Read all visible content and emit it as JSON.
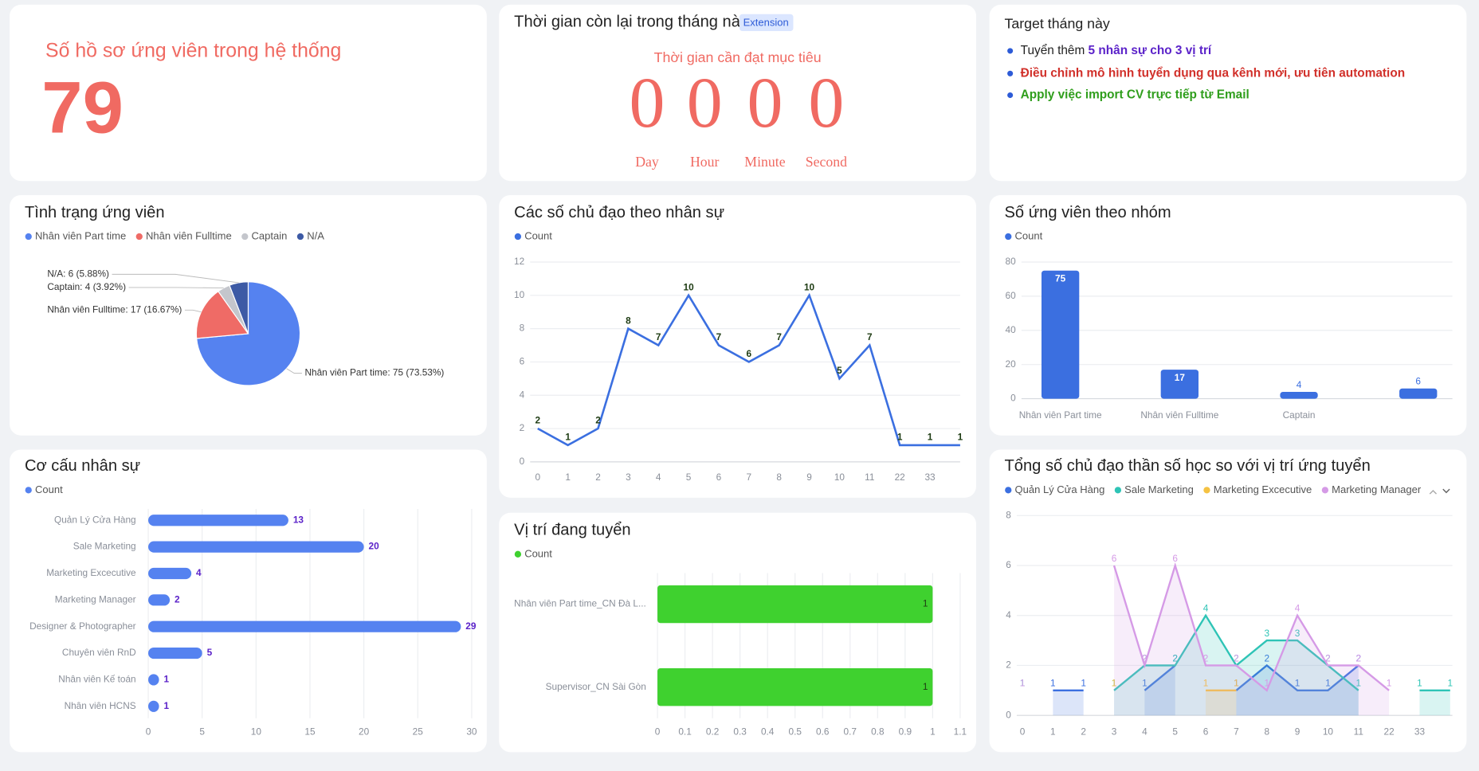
{
  "cards": {
    "candidates": {
      "title": "Số hồ sơ ứng viên trong hệ thống",
      "value": 79
    },
    "countdown": {
      "title": "Thời gian còn lại trong tháng này",
      "badge": "Extension",
      "subtitle": "Thời gian cần đạt mục tiêu",
      "units": [
        {
          "label": "Day",
          "value": 0
        },
        {
          "label": "Hour",
          "value": 0
        },
        {
          "label": "Minute",
          "value": 0
        },
        {
          "label": "Second",
          "value": 0
        }
      ]
    },
    "target": {
      "title": "Target tháng này",
      "items": [
        {
          "text": "Tuyển thêm ",
          "highlight": "5 nhân sự cho 3 vị trí",
          "color": "#5b22c9"
        },
        {
          "highlight": "Điều chỉnh mô hình tuyển dụng qua kênh mới, ưu tiên automation",
          "color": "#d1302a"
        },
        {
          "highlight": "Apply việc import CV trực tiếp từ Email",
          "color": "#2f9e1c"
        }
      ]
    }
  },
  "chart_data": [
    {
      "type": "pie",
      "title": "Tình trạng ứng viên",
      "categories": [
        "Nhân viên Part time",
        "Nhân viên Fulltime",
        "Captain",
        "N/A"
      ],
      "values": [
        75,
        17,
        4,
        6
      ],
      "value_labels": [
        "Nhân viên Part time: 75 (73.53%)",
        "Nhân viên Fulltime: 17 (16.67%)",
        "Captain: 4 (3.92%)",
        "N/A: 6 (5.88%)"
      ],
      "colors": [
        "#5582f0",
        "#ef6b66",
        "#c4c6cc",
        "#3d5aa5"
      ],
      "legend": "top-left"
    },
    {
      "type": "line",
      "title": "Các số chủ đạo theo nhân sự",
      "categories": [
        "0",
        "1",
        "2",
        "3",
        "4",
        "5",
        "6",
        "7",
        "8",
        "9",
        "10",
        "11",
        "22",
        "33",
        null
      ],
      "series": [
        {
          "name": "Count",
          "color": "#3b6fe0",
          "values": [
            2,
            1,
            2,
            8,
            7,
            10,
            7,
            6,
            7,
            10,
            5,
            7,
            1,
            1,
            1
          ]
        }
      ],
      "ylim": [
        0,
        12
      ],
      "yticks": [
        0,
        2,
        4,
        6,
        8,
        10,
        12
      ],
      "grid": true,
      "legend": "top-left"
    },
    {
      "type": "bar",
      "title": "Số ứng viên theo nhóm",
      "categories": [
        "Nhân viên Part time",
        "Nhân viên Fulltime",
        "Captain",
        null
      ],
      "series": [
        {
          "name": "Count",
          "color": "#3b6fe0",
          "values": [
            75,
            17,
            4,
            6
          ]
        }
      ],
      "ylim": [
        0,
        80
      ],
      "yticks": [
        0,
        20,
        40,
        60,
        80
      ],
      "grid": true,
      "legend": "top-left"
    },
    {
      "type": "hbar",
      "title": "Cơ cấu nhân sự",
      "categories": [
        "Quản Lý Cửa Hàng",
        "Sale Marketing",
        "Marketing Excecutive",
        "Marketing Manager",
        "Designer & Photographer",
        "Chuyên viên RnD",
        "Nhân viên Kế toán",
        "Nhân viên HCNS"
      ],
      "series": [
        {
          "name": "Count",
          "color": "#5582f0",
          "values": [
            13,
            20,
            4,
            2,
            29,
            5,
            1,
            1
          ]
        }
      ],
      "xlim": [
        0,
        30
      ],
      "xticks": [
        0,
        5,
        10,
        15,
        20,
        25,
        30
      ],
      "grid": true,
      "legend": "top-left"
    },
    {
      "type": "hbar",
      "title": "Vị trí đang tuyển",
      "categories": [
        "Nhân viên Part time_CN Đà L...",
        "Supervisor_CN Sài Gòn"
      ],
      "series": [
        {
          "name": "Count",
          "color": "#3fd12f",
          "values": [
            1,
            1
          ]
        }
      ],
      "xlim": [
        0,
        1.1
      ],
      "xticks": [
        0,
        0.1,
        0.2,
        0.3,
        0.4,
        0.5,
        0.6,
        0.7,
        0.8,
        0.9,
        1,
        1.1
      ],
      "grid": true,
      "legend": "top-left"
    },
    {
      "type": "area",
      "title": "Tổng số chủ đạo thần số học so với vị trí ứng tuyển",
      "categories": [
        "0",
        "1",
        "2",
        "3",
        "4",
        "5",
        "6",
        "7",
        "8",
        "9",
        "10",
        "11",
        "22",
        "33",
        null
      ],
      "series": [
        {
          "name": "Quản Lý Cửa Hàng",
          "color": "#3b6fe0",
          "values": [
            null,
            1,
            1,
            null,
            1,
            2,
            null,
            1,
            2,
            1,
            1,
            2,
            null,
            null,
            null
          ]
        },
        {
          "name": "Sale Marketing",
          "color": "#2ec4b6",
          "values": [
            1,
            null,
            null,
            1,
            2,
            2,
            4,
            2,
            3,
            3,
            2,
            1,
            null,
            1,
            1
          ]
        },
        {
          "name": "Marketing Excecutive",
          "color": "#f5c242",
          "values": [
            null,
            null,
            null,
            1,
            null,
            null,
            1,
            1,
            null,
            null,
            null,
            null,
            null,
            null,
            null
          ]
        },
        {
          "name": "Marketing Manager",
          "color": "#d59ae6",
          "values": [
            1,
            null,
            null,
            6,
            2,
            6,
            2,
            2,
            1,
            4,
            2,
            2,
            1,
            null,
            null
          ]
        }
      ],
      "ylim": [
        0,
        8
      ],
      "yticks": [
        0,
        2,
        4,
        6,
        8
      ],
      "grid": true,
      "legend": "top-left"
    }
  ]
}
